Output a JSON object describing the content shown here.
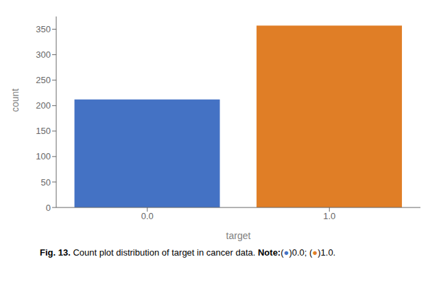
{
  "chart_data": {
    "type": "bar",
    "categories": [
      "0.0",
      "1.0"
    ],
    "values": [
      212,
      357
    ],
    "colors": [
      "#4472c4",
      "#e07e26"
    ],
    "xlabel": "target",
    "ylabel": "count",
    "ylim": [
      0,
      375
    ],
    "yticks": [
      0,
      50,
      100,
      150,
      200,
      250,
      300,
      350
    ],
    "grid": false,
    "annotations": [
      "Fig. 13.",
      " Count plot distribution of target in cancer data. ",
      "Note:",
      "(",
      "●",
      ")0.0; (",
      "●",
      ")1.0."
    ]
  }
}
